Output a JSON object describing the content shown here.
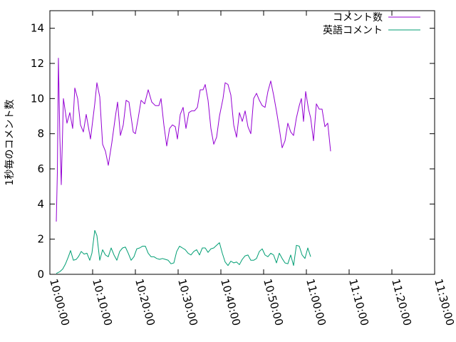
{
  "chart_data": {
    "type": "line",
    "title": "",
    "xlabel": "",
    "ylabel": "1秒毎のコメント数",
    "xlim": [
      "10:00:00",
      "11:30:00"
    ],
    "ylim": [
      0,
      15
    ],
    "xticks": [
      "10:00:00",
      "10:10:00",
      "10:20:00",
      "10:30:00",
      "10:40:00",
      "10:50:00",
      "11:00:00",
      "11:10:00",
      "11:20:00",
      "11:30:00"
    ],
    "yticks": [
      0,
      2,
      4,
      6,
      8,
      10,
      12,
      14
    ],
    "grid": false,
    "legend_position": "top-right",
    "series": [
      {
        "name": "コメント数",
        "color": "#9400d3",
        "points": [
          [
            "10:01:30",
            3.0
          ],
          [
            "10:01:45",
            5.8
          ],
          [
            "10:02:00",
            12.3
          ],
          [
            "10:02:20",
            7.8
          ],
          [
            "10:02:40",
            5.1
          ],
          [
            "10:03:10",
            10.0
          ],
          [
            "10:04:00",
            8.6
          ],
          [
            "10:04:40",
            9.2
          ],
          [
            "10:05:20",
            8.3
          ],
          [
            "10:05:50",
            10.6
          ],
          [
            "10:06:30",
            10.0
          ],
          [
            "10:07:10",
            8.5
          ],
          [
            "10:07:50",
            8.1
          ],
          [
            "10:08:30",
            9.1
          ],
          [
            "10:09:30",
            7.7
          ],
          [
            "10:10:30",
            9.7
          ],
          [
            "10:11:00",
            10.9
          ],
          [
            "10:11:40",
            10.1
          ],
          [
            "10:12:20",
            7.4
          ],
          [
            "10:13:00",
            7.0
          ],
          [
            "10:13:40",
            6.2
          ],
          [
            "10:14:30",
            7.5
          ],
          [
            "10:15:20",
            9.0
          ],
          [
            "10:15:50",
            9.8
          ],
          [
            "10:16:30",
            7.9
          ],
          [
            "10:17:10",
            8.5
          ],
          [
            "10:17:50",
            9.9
          ],
          [
            "10:18:30",
            9.8
          ],
          [
            "10:19:30",
            8.1
          ],
          [
            "10:20:00",
            8.0
          ],
          [
            "10:20:40",
            8.9
          ],
          [
            "10:21:20",
            9.9
          ],
          [
            "10:22:10",
            9.7
          ],
          [
            "10:23:00",
            10.5
          ],
          [
            "10:23:50",
            9.8
          ],
          [
            "10:24:40",
            9.6
          ],
          [
            "10:25:30",
            9.6
          ],
          [
            "10:26:00",
            10.0
          ],
          [
            "10:26:40",
            8.5
          ],
          [
            "10:27:20",
            7.3
          ],
          [
            "10:28:00",
            8.3
          ],
          [
            "10:28:40",
            8.5
          ],
          [
            "10:29:20",
            8.4
          ],
          [
            "10:29:50",
            7.7
          ],
          [
            "10:30:30",
            9.1
          ],
          [
            "10:31:10",
            9.5
          ],
          [
            "10:31:50",
            8.3
          ],
          [
            "10:32:30",
            9.2
          ],
          [
            "10:33:10",
            9.3
          ],
          [
            "10:33:50",
            9.3
          ],
          [
            "10:34:30",
            9.5
          ],
          [
            "10:35:10",
            10.5
          ],
          [
            "10:35:50",
            10.5
          ],
          [
            "10:36:20",
            10.8
          ],
          [
            "10:37:00",
            9.9
          ],
          [
            "10:37:40",
            8.3
          ],
          [
            "10:38:20",
            7.4
          ],
          [
            "10:39:00",
            7.8
          ],
          [
            "10:39:40",
            9.0
          ],
          [
            "10:40:30",
            10.0
          ],
          [
            "10:41:00",
            10.9
          ],
          [
            "10:41:40",
            10.8
          ],
          [
            "10:42:20",
            10.2
          ],
          [
            "10:43:00",
            8.5
          ],
          [
            "10:43:40",
            7.8
          ],
          [
            "10:44:20",
            9.2
          ],
          [
            "10:45:00",
            8.7
          ],
          [
            "10:45:40",
            9.3
          ],
          [
            "10:46:20",
            8.4
          ],
          [
            "10:47:00",
            8.0
          ],
          [
            "10:47:40",
            10.0
          ],
          [
            "10:48:20",
            10.3
          ],
          [
            "10:49:00",
            9.9
          ],
          [
            "10:49:40",
            9.6
          ],
          [
            "10:50:20",
            9.5
          ],
          [
            "10:51:00",
            10.4
          ],
          [
            "10:51:40",
            11.0
          ],
          [
            "10:52:20",
            10.2
          ],
          [
            "10:53:00",
            9.3
          ],
          [
            "10:53:40",
            8.3
          ],
          [
            "10:54:20",
            7.2
          ],
          [
            "10:55:00",
            7.6
          ],
          [
            "10:55:40",
            8.6
          ],
          [
            "10:56:20",
            8.1
          ],
          [
            "10:57:00",
            7.9
          ],
          [
            "10:57:40",
            8.9
          ],
          [
            "10:58:20",
            9.6
          ],
          [
            "10:58:50",
            10.0
          ],
          [
            "10:59:20",
            8.7
          ],
          [
            "10:59:50",
            10.4
          ],
          [
            "11:00:30",
            9.4
          ],
          [
            "11:01:00",
            8.9
          ],
          [
            "11:01:40",
            7.6
          ],
          [
            "11:02:20",
            9.7
          ],
          [
            "11:03:00",
            9.4
          ],
          [
            "11:03:40",
            9.4
          ],
          [
            "11:04:20",
            8.4
          ],
          [
            "11:05:00",
            8.6
          ],
          [
            "11:05:40",
            7.0
          ]
        ]
      },
      {
        "name": "英語コメント",
        "color": "#009e73",
        "points": [
          [
            "10:01:30",
            0.05
          ],
          [
            "10:02:20",
            0.15
          ],
          [
            "10:03:00",
            0.3
          ],
          [
            "10:03:40",
            0.6
          ],
          [
            "10:04:20",
            1.0
          ],
          [
            "10:04:50",
            1.35
          ],
          [
            "10:05:30",
            0.8
          ],
          [
            "10:06:10",
            0.85
          ],
          [
            "10:06:40",
            1.0
          ],
          [
            "10:07:20",
            1.3
          ],
          [
            "10:08:00",
            1.15
          ],
          [
            "10:08:40",
            1.2
          ],
          [
            "10:09:20",
            0.8
          ],
          [
            "10:09:50",
            1.2
          ],
          [
            "10:10:30",
            2.5
          ],
          [
            "10:11:00",
            2.2
          ],
          [
            "10:11:40",
            0.8
          ],
          [
            "10:12:20",
            1.4
          ],
          [
            "10:13:00",
            1.1
          ],
          [
            "10:13:40",
            1.0
          ],
          [
            "10:14:20",
            1.5
          ],
          [
            "10:15:00",
            1.1
          ],
          [
            "10:15:40",
            0.8
          ],
          [
            "10:16:20",
            1.3
          ],
          [
            "10:17:00",
            1.5
          ],
          [
            "10:17:40",
            1.55
          ],
          [
            "10:18:20",
            1.2
          ],
          [
            "10:19:00",
            0.8
          ],
          [
            "10:19:40",
            1.0
          ],
          [
            "10:20:20",
            1.45
          ],
          [
            "10:21:00",
            1.5
          ],
          [
            "10:21:40",
            1.6
          ],
          [
            "10:22:20",
            1.6
          ],
          [
            "10:23:00",
            1.2
          ],
          [
            "10:23:40",
            1.0
          ],
          [
            "10:24:20",
            1.0
          ],
          [
            "10:25:00",
            0.9
          ],
          [
            "10:25:40",
            0.85
          ],
          [
            "10:26:20",
            0.9
          ],
          [
            "10:27:00",
            0.85
          ],
          [
            "10:27:40",
            0.8
          ],
          [
            "10:28:20",
            0.6
          ],
          [
            "10:29:00",
            0.65
          ],
          [
            "10:29:40",
            1.3
          ],
          [
            "10:30:20",
            1.6
          ],
          [
            "10:31:00",
            1.5
          ],
          [
            "10:31:40",
            1.4
          ],
          [
            "10:32:20",
            1.2
          ],
          [
            "10:33:00",
            1.1
          ],
          [
            "10:33:40",
            1.3
          ],
          [
            "10:34:20",
            1.4
          ],
          [
            "10:35:00",
            1.1
          ],
          [
            "10:35:40",
            1.5
          ],
          [
            "10:36:20",
            1.5
          ],
          [
            "10:37:00",
            1.25
          ],
          [
            "10:37:40",
            1.45
          ],
          [
            "10:38:20",
            1.5
          ],
          [
            "10:39:00",
            1.65
          ],
          [
            "10:39:40",
            1.8
          ],
          [
            "10:40:20",
            1.2
          ],
          [
            "10:41:00",
            0.7
          ],
          [
            "10:41:40",
            0.5
          ],
          [
            "10:42:20",
            0.75
          ],
          [
            "10:43:00",
            0.65
          ],
          [
            "10:43:40",
            0.7
          ],
          [
            "10:44:20",
            0.55
          ],
          [
            "10:45:00",
            0.85
          ],
          [
            "10:45:40",
            1.05
          ],
          [
            "10:46:20",
            1.1
          ],
          [
            "10:47:00",
            0.8
          ],
          [
            "10:47:40",
            0.8
          ],
          [
            "10:48:20",
            0.9
          ],
          [
            "10:49:00",
            1.3
          ],
          [
            "10:49:40",
            1.45
          ],
          [
            "10:50:20",
            1.1
          ],
          [
            "10:51:00",
            1.0
          ],
          [
            "10:51:40",
            1.2
          ],
          [
            "10:52:20",
            1.1
          ],
          [
            "10:53:00",
            0.65
          ],
          [
            "10:53:40",
            1.2
          ],
          [
            "10:54:20",
            0.9
          ],
          [
            "10:55:00",
            0.65
          ],
          [
            "10:55:40",
            0.6
          ],
          [
            "10:56:20",
            1.1
          ],
          [
            "10:57:00",
            0.5
          ],
          [
            "10:57:40",
            1.65
          ],
          [
            "10:58:20",
            1.6
          ],
          [
            "10:59:00",
            1.1
          ],
          [
            "10:59:40",
            0.9
          ],
          [
            "11:00:20",
            1.5
          ],
          [
            "11:01:00",
            1.0
          ]
        ]
      }
    ]
  },
  "colors": {
    "series_1": "#9400d3",
    "series_2": "#009e73",
    "axis": "#000000",
    "background": "#ffffff"
  }
}
